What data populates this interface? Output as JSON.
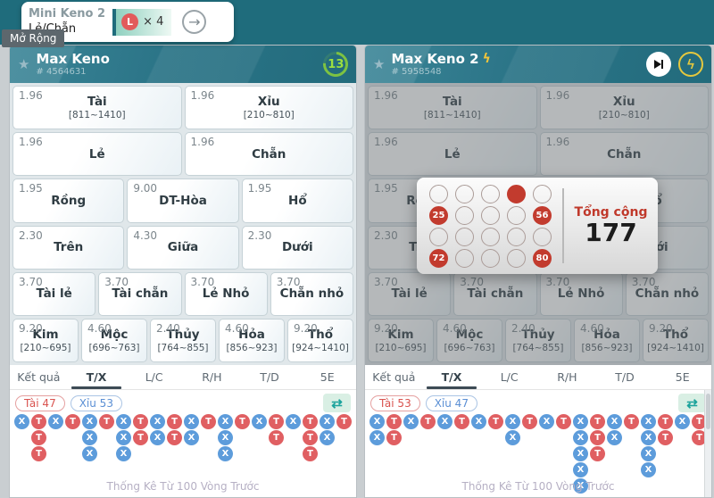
{
  "icons": {
    "star": "★",
    "swap": "⇄",
    "arrow_right": "→",
    "bolt": "ϟ"
  },
  "colors": {
    "teal_bg": "#1f6c7c",
    "countdown_green": "#7dc242",
    "tai_red": "#e05f62",
    "xiu_blue": "#5d9cdb",
    "accent_yellow": "#e5c83e",
    "result_red": "#c23b2e"
  },
  "mini_card": {
    "title": "Mini Keno 2",
    "subtitle": "Lẻ/Chẵn",
    "badge_letter": "L",
    "badge_multiplier": "× 4",
    "tooltip": "Mở Rộng"
  },
  "tabs": {
    "active_index": 1,
    "items": [
      {
        "key": "ket-qua",
        "label": "Kết quả"
      },
      {
        "key": "tx",
        "label": "T/X"
      },
      {
        "key": "lc",
        "label": "L/C"
      },
      {
        "key": "rh",
        "label": "R/H"
      },
      {
        "key": "td",
        "label": "T/D"
      },
      {
        "key": "5e",
        "label": "5E"
      }
    ]
  },
  "bet_rows": [
    {
      "cells": [
        {
          "key": "tai",
          "odds": "1.96",
          "label": "Tài",
          "range": "[811~1410]"
        },
        {
          "key": "xiu",
          "odds": "1.96",
          "label": "Xỉu",
          "range": "[210~810]"
        }
      ]
    },
    {
      "cells": [
        {
          "key": "le",
          "odds": "1.96",
          "label": "Lẻ"
        },
        {
          "key": "chan",
          "odds": "1.96",
          "label": "Chẵn"
        }
      ]
    },
    {
      "cells": [
        {
          "key": "rong",
          "odds": "1.95",
          "label": "Rồng"
        },
        {
          "key": "dt-hoa",
          "odds": "9.00",
          "label": "DT-Hòa"
        },
        {
          "key": "ho",
          "odds": "1.95",
          "label": "Hổ"
        }
      ]
    },
    {
      "cells": [
        {
          "key": "tren",
          "odds": "2.30",
          "label": "Trên"
        },
        {
          "key": "giua",
          "odds": "4.30",
          "label": "Giữa"
        },
        {
          "key": "duoi",
          "odds": "2.30",
          "label": "Dưới"
        }
      ]
    },
    {
      "cells": [
        {
          "key": "tai-le",
          "odds": "3.70",
          "label": "Tài lẻ"
        },
        {
          "key": "tai-chan",
          "odds": "3.70",
          "label": "Tài chẵn"
        },
        {
          "key": "le-nho",
          "odds": "3.70",
          "label": "Lẻ Nhỏ"
        },
        {
          "key": "chan-nho",
          "odds": "3.70",
          "label": "Chẵn nhỏ"
        }
      ]
    },
    {
      "cells": [
        {
          "key": "kim",
          "odds": "9.20",
          "label": "Kim",
          "range": "[210~695]"
        },
        {
          "key": "moc",
          "odds": "4.60",
          "label": "Mộc",
          "range": "[696~763]"
        },
        {
          "key": "thuy",
          "odds": "2.40",
          "label": "Thủy",
          "range": "[764~855]"
        },
        {
          "key": "hoa",
          "odds": "4.60",
          "label": "Hỏa",
          "range": "[856~923]"
        },
        {
          "key": "tho",
          "odds": "9.20",
          "label": "Thổ",
          "range": "[924~1410]"
        }
      ]
    }
  ],
  "footer_note": "Thống Kê Từ 100 Vòng Trước",
  "panels": [
    {
      "title": "Max Keno",
      "id": "# 4564631",
      "countdown": "13",
      "tai_pill": "Tài 47",
      "xiu_pill": "Xỉu 53",
      "beads": [
        [
          "X"
        ],
        [
          "T",
          "T",
          "T"
        ],
        [
          "X"
        ],
        [
          "T"
        ],
        [
          "X",
          "X",
          "X"
        ],
        [
          "T"
        ],
        [
          "X",
          "X",
          "X"
        ],
        [
          "T",
          "T"
        ],
        [
          "X",
          "X"
        ],
        [
          "T",
          "T"
        ],
        [
          "X",
          "X"
        ],
        [
          "T"
        ],
        [
          "X",
          "X",
          "X"
        ],
        [
          "T"
        ],
        [
          "X"
        ],
        [
          "T",
          "T"
        ],
        [
          "X"
        ],
        [
          "T",
          "T",
          "T"
        ],
        [
          "X",
          "X"
        ],
        [
          "T"
        ]
      ]
    },
    {
      "title": "Max Keno 2",
      "id": "# 5958548",
      "tai_pill": "Tài 53",
      "xiu_pill": "Xỉu 47",
      "beads": [
        [
          "X",
          "X"
        ],
        [
          "T",
          "T"
        ],
        [
          "X"
        ],
        [
          "T"
        ],
        [
          "X"
        ],
        [
          "T"
        ],
        [
          "X"
        ],
        [
          "T"
        ],
        [
          "X",
          "X"
        ],
        [
          "T"
        ],
        [
          "X"
        ],
        [
          "T"
        ],
        [
          "X",
          "X",
          "X",
          "X",
          "X"
        ],
        [
          "T",
          "T",
          "T"
        ],
        [
          "X",
          "X"
        ],
        [
          "T"
        ],
        [
          "X",
          "X",
          "X",
          "X"
        ],
        [
          "T",
          "T"
        ],
        [
          "X"
        ],
        [
          "T",
          "T"
        ]
      ],
      "popup": {
        "total_label": "Tổng cộng",
        "total": "177",
        "balls": [
          [
            null,
            null,
            null,
            "",
            null
          ],
          [
            "25",
            null,
            null,
            null,
            "56"
          ],
          [
            null,
            null,
            null,
            null,
            null
          ],
          [
            "72",
            null,
            null,
            null,
            "80"
          ]
        ]
      }
    }
  ]
}
